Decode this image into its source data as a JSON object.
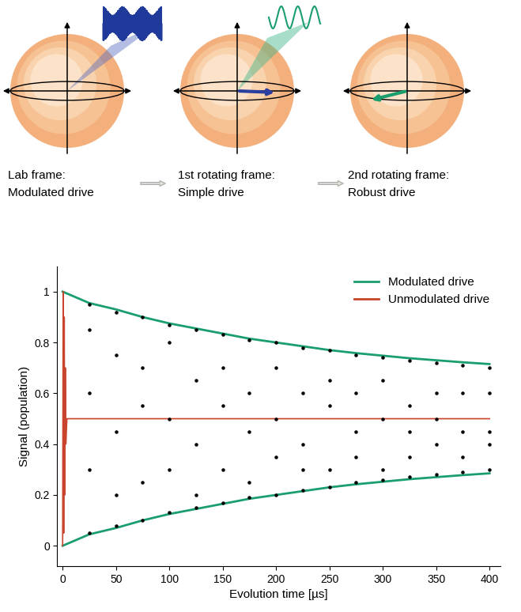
{
  "diagram": {
    "panels": [
      {
        "caption": [
          "Lab frame:",
          "Modulated drive"
        ]
      },
      {
        "caption": [
          "1st rotating frame:",
          "Simple drive"
        ]
      },
      {
        "caption": [
          "2nd rotating frame:",
          "Robust drive"
        ]
      }
    ]
  },
  "chart_data": {
    "type": "line",
    "x_label": "Evolution time [µs]",
    "y_label": "Signal (population)",
    "xlim": [
      -5,
      410
    ],
    "ylim": [
      -0.08,
      1.1
    ],
    "xticks": [
      0,
      50,
      100,
      150,
      200,
      250,
      300,
      350,
      400
    ],
    "yticks": [
      0,
      0.2,
      0.4,
      0.6,
      0.8,
      1
    ],
    "legend": "upper right",
    "series": [
      {
        "name": "Modulated drive",
        "color": "#1a9e6e",
        "x": [
          0,
          25,
          50,
          75,
          100,
          125,
          150,
          175,
          200,
          225,
          250,
          275,
          300,
          325,
          350,
          375,
          400
        ],
        "upper": [
          1.0,
          0.955,
          0.93,
          0.9,
          0.875,
          0.855,
          0.835,
          0.815,
          0.8,
          0.785,
          0.77,
          0.758,
          0.748,
          0.738,
          0.73,
          0.722,
          0.715
        ],
        "lower": [
          0.0,
          0.045,
          0.07,
          0.1,
          0.125,
          0.145,
          0.165,
          0.185,
          0.2,
          0.215,
          0.23,
          0.242,
          0.252,
          0.262,
          0.27,
          0.278,
          0.285
        ]
      },
      {
        "name": "Unmodulated drive",
        "color": "#c8442c",
        "x": [
          0,
          0.5,
          1,
          1.5,
          2,
          2.5,
          3,
          4,
          400
        ],
        "values": [
          0,
          1,
          0.05,
          0.9,
          0.2,
          0.7,
          0.4,
          0.5,
          0.5
        ]
      }
    ],
    "measurements": {
      "color": "#000000",
      "x": [
        25,
        50,
        75,
        100,
        125,
        150,
        175,
        200,
        225,
        250,
        275,
        300,
        325,
        350,
        375,
        400
      ],
      "values": [
        [
          0.95,
          0.85,
          0.6,
          0.3,
          0.05
        ],
        [
          0.92,
          0.75,
          0.45,
          0.2,
          0.08
        ],
        [
          0.9,
          0.7,
          0.55,
          0.25,
          0.1
        ],
        [
          0.87,
          0.8,
          0.5,
          0.3,
          0.13
        ],
        [
          0.85,
          0.65,
          0.4,
          0.2,
          0.15
        ],
        [
          0.83,
          0.7,
          0.55,
          0.3,
          0.17
        ],
        [
          0.81,
          0.6,
          0.45,
          0.25,
          0.19
        ],
        [
          0.8,
          0.7,
          0.5,
          0.35,
          0.2
        ],
        [
          0.78,
          0.6,
          0.4,
          0.3,
          0.22
        ],
        [
          0.77,
          0.65,
          0.55,
          0.3,
          0.23
        ],
        [
          0.75,
          0.6,
          0.45,
          0.35,
          0.25
        ],
        [
          0.74,
          0.65,
          0.5,
          0.3,
          0.26
        ],
        [
          0.73,
          0.55,
          0.45,
          0.35,
          0.27
        ],
        [
          0.72,
          0.6,
          0.5,
          0.4,
          0.28
        ],
        [
          0.71,
          0.6,
          0.45,
          0.35,
          0.29
        ],
        [
          0.7,
          0.6,
          0.45,
          0.4,
          0.3
        ]
      ]
    }
  }
}
